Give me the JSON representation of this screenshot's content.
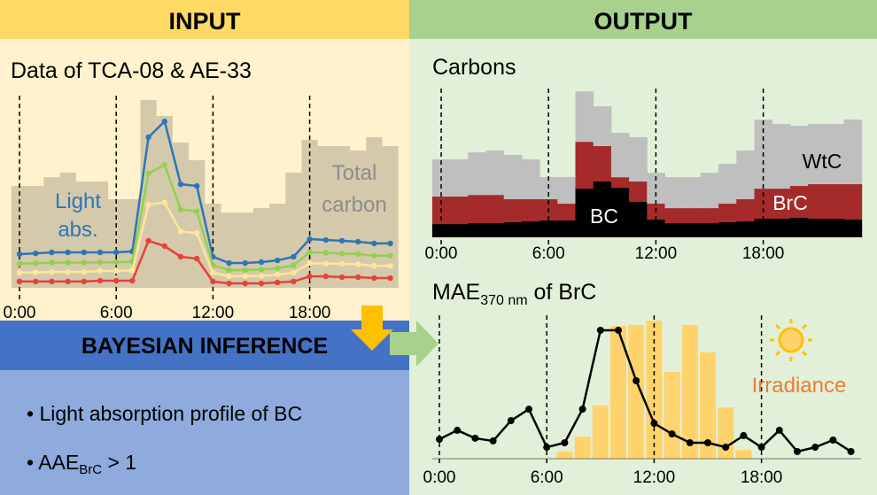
{
  "header": {
    "input": "INPUT",
    "output": "OUTPUT"
  },
  "input_panel": {
    "title": "Data of TCA-08 & AE-33",
    "light_abs_label": [
      "Light",
      "abs."
    ],
    "total_carbon_label": [
      "Total",
      "carbon"
    ],
    "xticks": [
      {
        "value": 0,
        "label": "0:00"
      },
      {
        "value": 6,
        "label": "6:00"
      },
      {
        "value": 12,
        "label": "12:00"
      },
      {
        "value": 18,
        "label": "18:00"
      }
    ],
    "ylim": [
      0,
      100
    ],
    "total_carbon": {
      "color": "#c9bfa3",
      "values": [
        53.5,
        53.5,
        58.1,
        60.5,
        55.8,
        55.8,
        46.5,
        46.5,
        98.6,
        90.2,
        76.3,
        67.0,
        44.2,
        39.5,
        39.5,
        41.9,
        44.2,
        60.5,
        77.7,
        74.4,
        74.4,
        72.1,
        79.1,
        74.4
      ]
    },
    "series": [
      {
        "color": "#2e75b6",
        "values": [
          17.7,
          18.1,
          18.6,
          18.6,
          18.6,
          18.6,
          18.6,
          19.1,
          79.1,
          87.4,
          54.4,
          53.5,
          16.3,
          13.0,
          13.0,
          13.5,
          14.4,
          16.3,
          25.6,
          25.1,
          24.7,
          24.2,
          23.3,
          23.3
        ]
      },
      {
        "color": "#92d050",
        "values": [
          12.7,
          12.9,
          13.2,
          13.2,
          13.2,
          13.4,
          13.4,
          13.7,
          60.1,
          64.5,
          41.1,
          40.1,
          11.8,
          9.3,
          9.3,
          9.6,
          10.3,
          11.8,
          18.7,
          18.4,
          18.0,
          17.7,
          16.9,
          16.9
        ]
      },
      {
        "color": "#ffe699",
        "values": [
          8.0,
          8.1,
          8.3,
          8.3,
          8.3,
          8.9,
          8.9,
          9.1,
          43.7,
          44.8,
          29.6,
          28.7,
          7.9,
          6.1,
          6.1,
          6.2,
          6.9,
          7.9,
          12.9,
          12.7,
          12.6,
          12.3,
          11.5,
          11.5
        ]
      },
      {
        "color": "#e8403a",
        "values": [
          3.3,
          3.3,
          3.3,
          3.3,
          3.3,
          3.7,
          3.7,
          3.7,
          24.7,
          21.9,
          16.3,
          15.3,
          3.3,
          2.3,
          2.3,
          2.3,
          2.8,
          3.3,
          6.0,
          6.0,
          5.6,
          5.6,
          5.1,
          5.1
        ]
      }
    ]
  },
  "carbons_panel": {
    "title": "Carbons",
    "xticks": [
      {
        "value": 0,
        "label": "0:00"
      },
      {
        "value": 6,
        "label": "6:00"
      },
      {
        "value": 12,
        "label": "12:00"
      },
      {
        "value": 18,
        "label": "18:00"
      }
    ],
    "ylim": [
      0,
      100
    ],
    "series": [
      {
        "name": "BC",
        "color": "#000000",
        "values": [
          8.9,
          8.9,
          9.5,
          9.5,
          10.1,
          10.7,
          11.3,
          11.3,
          32.7,
          37.5,
          33.3,
          23.8,
          11.9,
          9.5,
          9.5,
          9.5,
          10.1,
          10.7,
          12.5,
          12.5,
          13.1,
          12.5,
          12.5,
          11.9
        ]
      },
      {
        "name": "BrC",
        "color": "#a52a2a",
        "values": [
          18.5,
          18.5,
          19.0,
          19.0,
          15.5,
          14.9,
          14.3,
          11.3,
          31.5,
          23.8,
          7.1,
          13.7,
          10.7,
          10.1,
          10.1,
          10.1,
          12.5,
          14.9,
          20.2,
          20.2,
          21.4,
          23.2,
          23.2,
          23.8
        ]
      },
      {
        "name": "WtC",
        "color": "#bfbfbf",
        "values": [
          25.0,
          25.0,
          28.6,
          29.8,
          29.8,
          26.8,
          14.9,
          17.9,
          33.9,
          26.8,
          29.8,
          29.8,
          20.8,
          20.8,
          20.8,
          23.8,
          26.8,
          32.7,
          46.4,
          43.5,
          40.5,
          40.5,
          40.5,
          43.5
        ]
      }
    ]
  },
  "mae_panel": {
    "title": {
      "main": "MAE",
      "sub": "370 nm",
      "rest": " of BrC"
    },
    "irradiance_label": "Irradiance",
    "xticks": [
      {
        "value": 0,
        "label": "0:00"
      },
      {
        "value": 6,
        "label": "6:00"
      },
      {
        "value": 12,
        "label": "12:00"
      },
      {
        "value": 18,
        "label": "18:00"
      }
    ],
    "ylim": [
      0,
      100
    ],
    "mae": {
      "color": "#000000",
      "values": [
        13.9,
        20.3,
        14.6,
        12.7,
        27.2,
        35.4,
        8.2,
        11.4,
        35.4,
        91.8,
        91.8,
        55.7,
        25.3,
        17.7,
        11.4,
        11.4,
        8.2,
        16.5,
        8.2,
        20.3,
        5.1,
        8.2,
        13.3,
        5.1
      ]
    },
    "irradiance": {
      "color": "#ffd36b",
      "values": [
        0,
        0,
        0,
        0,
        0,
        0,
        0,
        5.1,
        15.8,
        38.0,
        94.9,
        95.6,
        98.7,
        62.0,
        95.6,
        75.9,
        36.7,
        6.3,
        0,
        0,
        0,
        0,
        0,
        0
      ]
    }
  },
  "bayesian": {
    "title": "BAYESIAN INFERENCE",
    "bullets": [
      {
        "text": "Light absorption profile of BC"
      },
      {
        "main": "AAE",
        "sub": "BrC",
        "rest": " > 1"
      }
    ]
  }
}
